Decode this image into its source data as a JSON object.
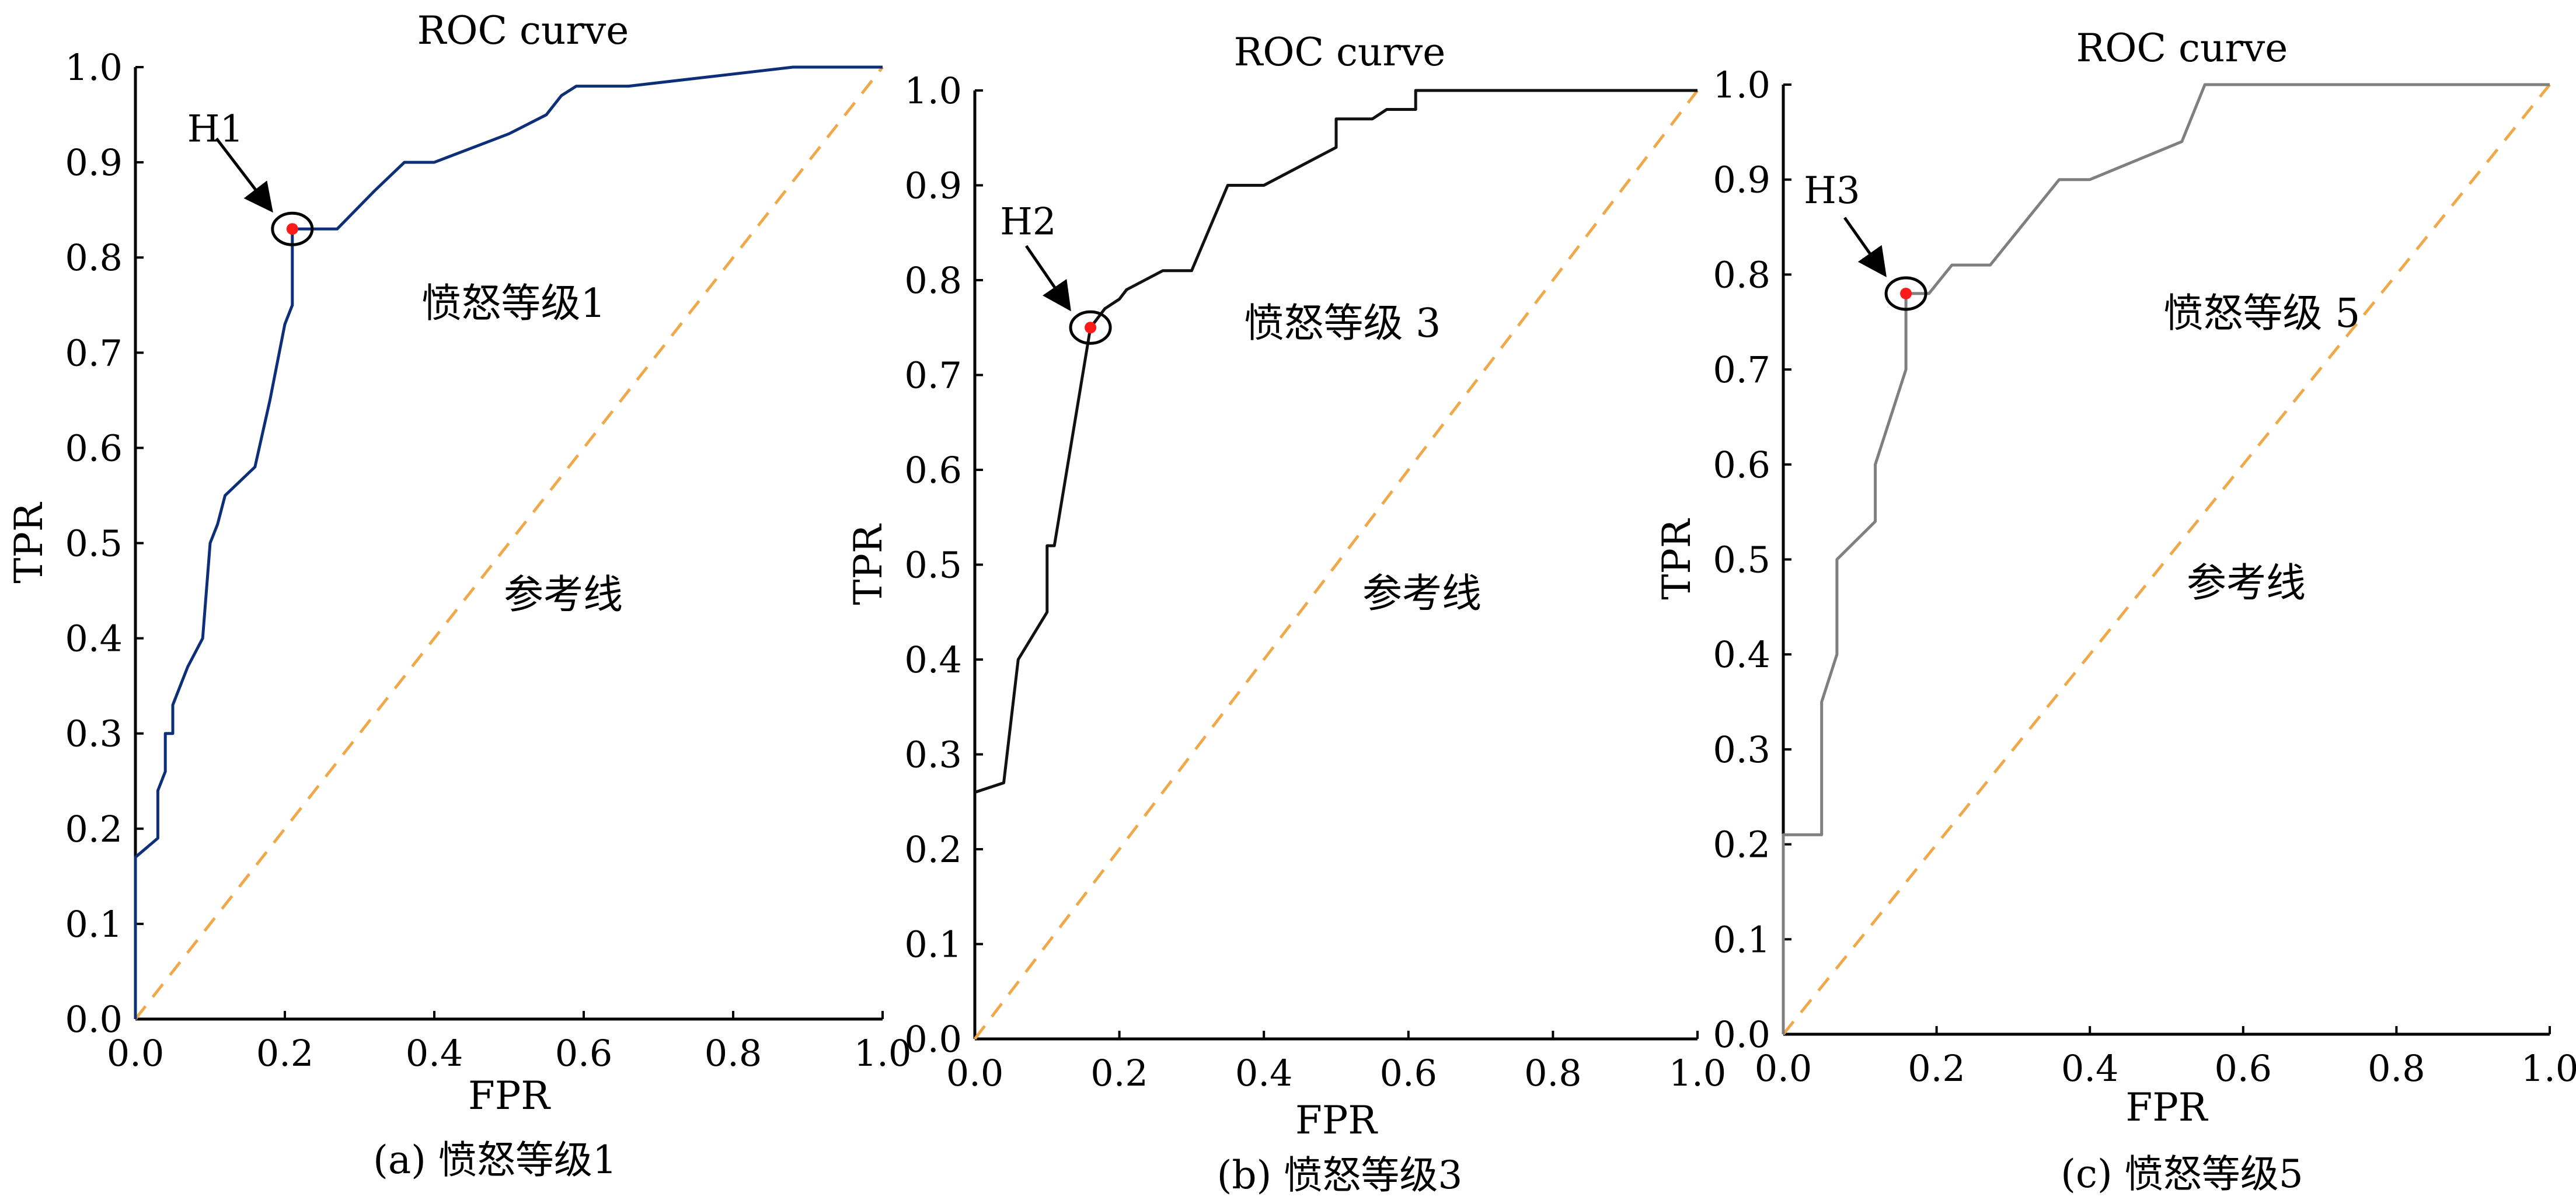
{
  "colors": {
    "curve1": "#0d2f7a",
    "curve2": "#111111",
    "curve3": "#7f7f7f",
    "reference": "#f0a94a",
    "marker": "#ff1a1a"
  },
  "chart_data": [
    {
      "type": "line",
      "title": "ROC curve",
      "xlabel": "FPR",
      "ylabel": "TPR",
      "caption": "(a) 愤怒等级1",
      "class_label": "愤怒等级1",
      "reference_label": "参考线",
      "xlim": [
        0,
        1
      ],
      "ylim": [
        0,
        1
      ],
      "xticks": [
        "0.0",
        "0.2",
        "0.4",
        "0.6",
        "0.8",
        "1.0"
      ],
      "yticks": [
        "0.0",
        "0.1",
        "0.2",
        "0.3",
        "0.4",
        "0.5",
        "0.6",
        "0.7",
        "0.8",
        "0.9",
        "1.0"
      ],
      "grid": false,
      "optimal_point": {
        "label": "H1",
        "x": 0.21,
        "y": 0.83
      },
      "series": [
        {
          "x": [
            0,
            0,
            0.03,
            0.03,
            0.04,
            0.04,
            0.05,
            0.05,
            0.07,
            0.09,
            0.1,
            0.11,
            0.12,
            0.12,
            0.16,
            0.18,
            0.2,
            0.21,
            0.21,
            0.27,
            0.32,
            0.36,
            0.4,
            0.5,
            0.55,
            0.57,
            0.59,
            0.66,
            0.88,
            1.0
          ],
          "y": [
            0,
            0.17,
            0.19,
            0.24,
            0.26,
            0.3,
            0.3,
            0.33,
            0.37,
            0.4,
            0.5,
            0.52,
            0.55,
            0.55,
            0.58,
            0.65,
            0.73,
            0.75,
            0.83,
            0.83,
            0.87,
            0.9,
            0.9,
            0.93,
            0.95,
            0.97,
            0.98,
            0.98,
            1.0,
            1.0
          ]
        }
      ]
    },
    {
      "type": "line",
      "title": "ROC curve",
      "xlabel": "FPR",
      "ylabel": "TPR",
      "caption": "(b) 愤怒等级3",
      "class_label": "愤怒等级 3",
      "reference_label": "参考线",
      "xlim": [
        0,
        1
      ],
      "ylim": [
        0,
        1
      ],
      "xticks": [
        "0.0",
        "0.2",
        "0.4",
        "0.6",
        "0.8",
        "1.0"
      ],
      "yticks": [
        "0.0",
        "0.1",
        "0.2",
        "0.3",
        "0.4",
        "0.5",
        "0.6",
        "0.7",
        "0.8",
        "0.9",
        "1.0"
      ],
      "grid": false,
      "optimal_point": {
        "label": "H2",
        "x": 0.16,
        "y": 0.75
      },
      "series": [
        {
          "x": [
            0,
            0.04,
            0.06,
            0.1,
            0.1,
            0.11,
            0.16,
            0.18,
            0.2,
            0.21,
            0.26,
            0.3,
            0.35,
            0.4,
            0.5,
            0.5,
            0.55,
            0.57,
            0.59,
            0.61,
            0.61,
            0.66,
            1.0
          ],
          "y": [
            0.26,
            0.27,
            0.4,
            0.45,
            0.52,
            0.52,
            0.75,
            0.77,
            0.78,
            0.79,
            0.81,
            0.81,
            0.9,
            0.9,
            0.94,
            0.97,
            0.97,
            0.98,
            0.98,
            0.98,
            1.0,
            1.0,
            1.0
          ]
        }
      ]
    },
    {
      "type": "line",
      "title": "ROC curve",
      "xlabel": "FPR",
      "ylabel": "TPR",
      "caption": "(c) 愤怒等级5",
      "class_label": "愤怒等级 5",
      "reference_label": "参考线",
      "xlim": [
        0,
        1
      ],
      "ylim": [
        0,
        1
      ],
      "xticks": [
        "0.0",
        "0.2",
        "0.4",
        "0.6",
        "0.8",
        "1.0"
      ],
      "yticks": [
        "0.0",
        "0.1",
        "0.2",
        "0.3",
        "0.4",
        "0.5",
        "0.6",
        "0.7",
        "0.8",
        "0.9",
        "1.0"
      ],
      "grid": false,
      "optimal_point": {
        "label": "H3",
        "x": 0.16,
        "y": 0.78
      },
      "series": [
        {
          "x": [
            0,
            0,
            0.05,
            0.05,
            0.07,
            0.07,
            0.12,
            0.12,
            0.16,
            0.16,
            0.19,
            0.22,
            0.27,
            0.31,
            0.36,
            0.4,
            0.52,
            0.55,
            1.0
          ],
          "y": [
            0,
            0.21,
            0.21,
            0.35,
            0.4,
            0.5,
            0.54,
            0.6,
            0.7,
            0.78,
            0.78,
            0.81,
            0.81,
            0.85,
            0.9,
            0.9,
            0.94,
            1.0,
            1.0
          ]
        }
      ]
    }
  ]
}
